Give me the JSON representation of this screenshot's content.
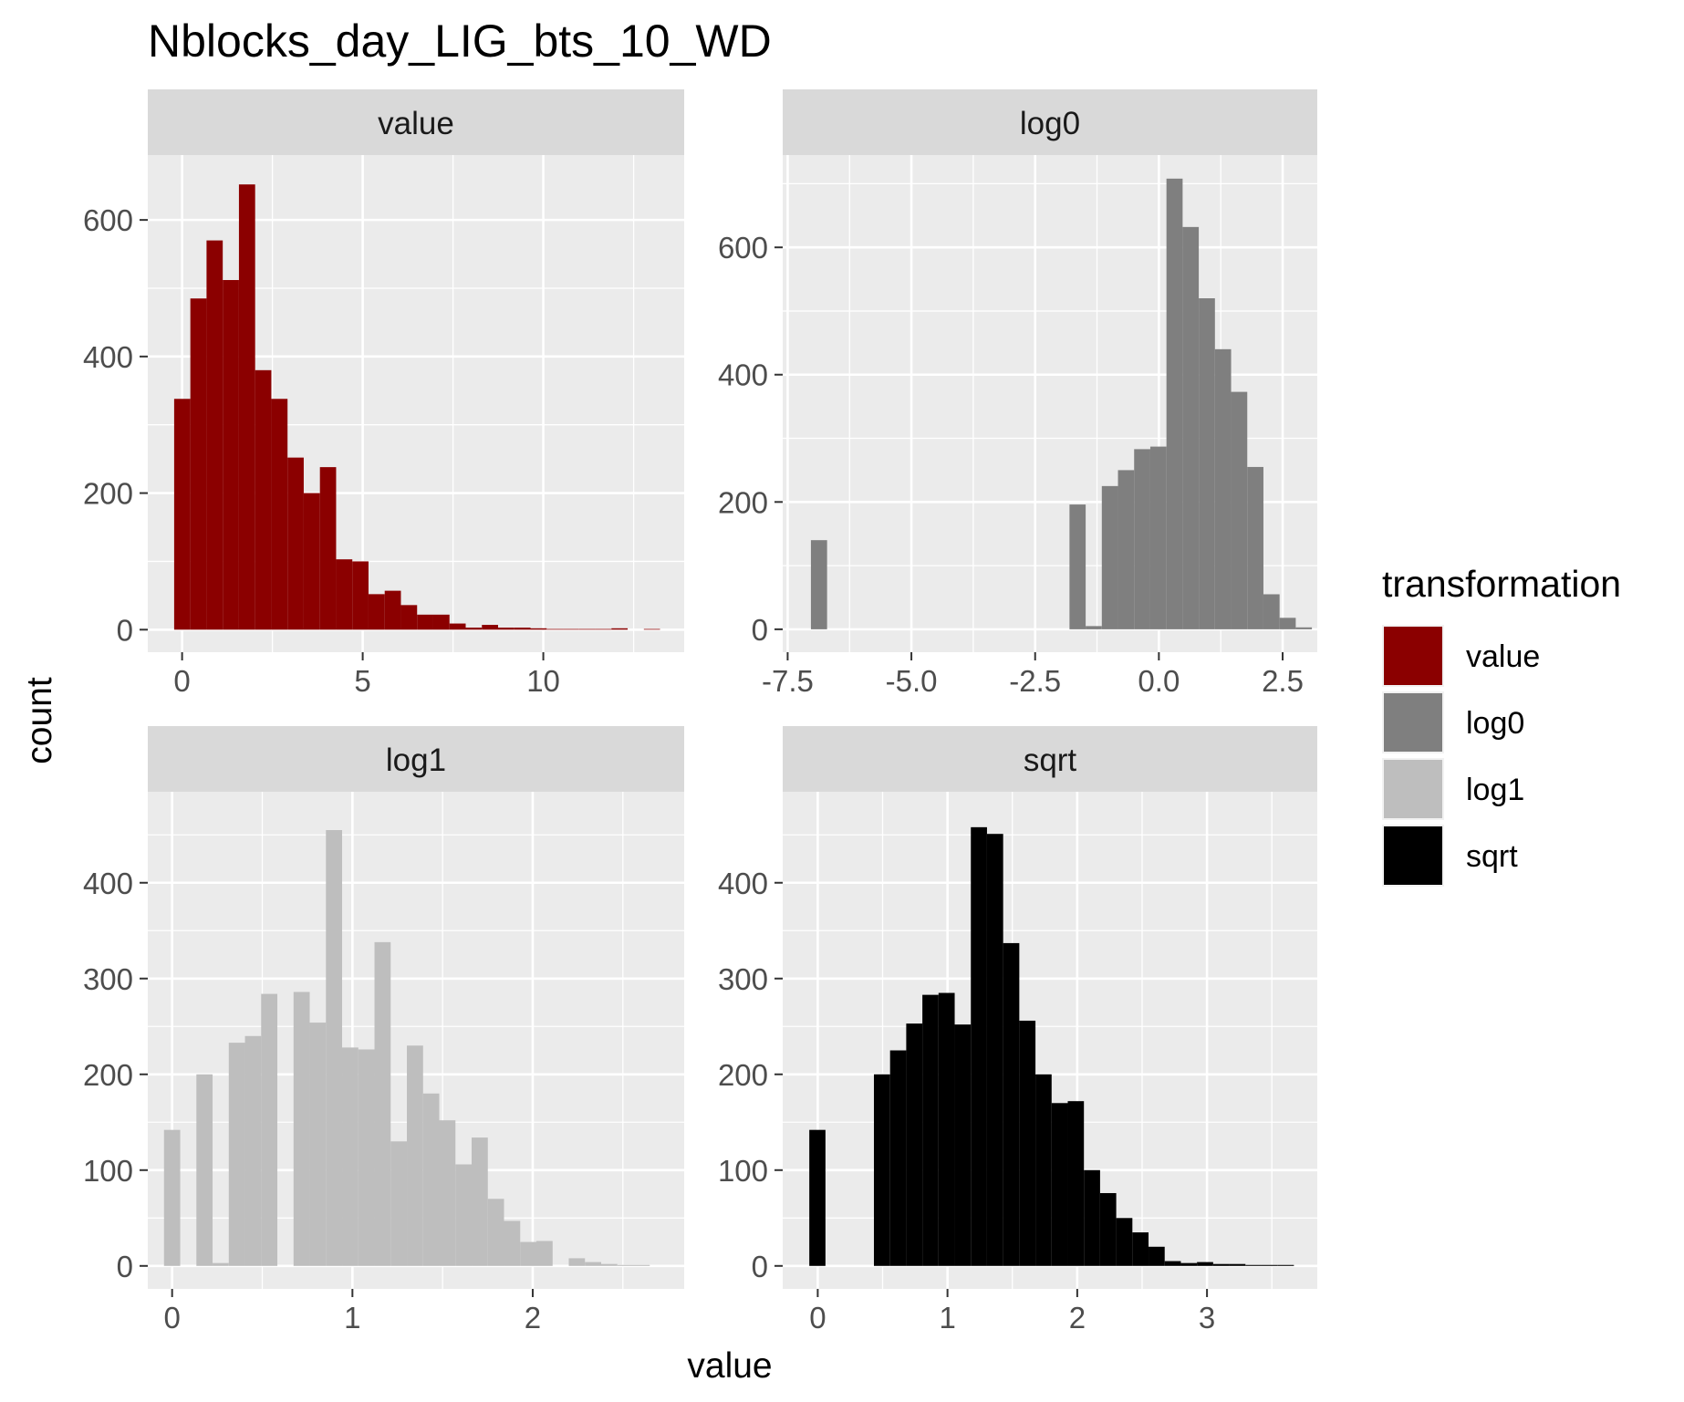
{
  "chart_data": {
    "type": "bar",
    "title": "Nblocks_day_LIG_bts_10_WD",
    "xlabel": "value",
    "ylabel": "count",
    "legend": {
      "title": "transformation",
      "position": "right",
      "entries": [
        {
          "label": "value",
          "color": "#8B0000"
        },
        {
          "label": "log0",
          "color": "#7F7F7F"
        },
        {
          "label": "log1",
          "color": "#BEBEBE"
        },
        {
          "label": "sqrt",
          "color": "#000000"
        }
      ]
    },
    "panel_background": "#EBEBEB",
    "strip_background": "#D9D9D9",
    "panels": [
      {
        "strip": "value",
        "color": "#8B0000",
        "xlim": [
          -0.95,
          13.9
        ],
        "ylim": [
          -33,
          695
        ],
        "xticks": [
          0,
          5,
          10
        ],
        "xtick_labels": [
          "0",
          "5",
          "10"
        ],
        "yticks": [
          0,
          200,
          400,
          600
        ],
        "ytick_labels": [
          "0",
          "200",
          "400",
          "600"
        ],
        "bin_start": -0.22,
        "bin_width": 0.4484,
        "counts": [
          338,
          485,
          570,
          512,
          652,
          380,
          338,
          252,
          200,
          238,
          103,
          100,
          52,
          57,
          36,
          22,
          22,
          9,
          3,
          7,
          3,
          3,
          2,
          1,
          1,
          1,
          1,
          2,
          0,
          1
        ]
      },
      {
        "strip": "log0",
        "color": "#7F7F7F",
        "xlim": [
          -7.6,
          3.2
        ],
        "ylim": [
          -36,
          745
        ],
        "xticks": [
          -7.5,
          -5.0,
          -2.5,
          0.0,
          2.5
        ],
        "xtick_labels": [
          "-7.5",
          "-5.0",
          "-2.5",
          "0.0",
          "2.5"
        ],
        "yticks": [
          0,
          200,
          400,
          600
        ],
        "ytick_labels": [
          "0",
          "200",
          "400",
          "600"
        ],
        "bin_start": -7.03,
        "bin_width": 0.3265,
        "counts": [
          140,
          0,
          0,
          0,
          0,
          0,
          0,
          0,
          0,
          0,
          0,
          0,
          0,
          0,
          0,
          0,
          196,
          5,
          225,
          250,
          283,
          287,
          708,
          632,
          520,
          440,
          373,
          255,
          55,
          18,
          3
        ]
      },
      {
        "strip": "log1",
        "color": "#BEBEBE",
        "xlim": [
          -0.135,
          2.84
        ],
        "ylim": [
          -24,
          495
        ],
        "xticks": [
          0,
          1,
          2
        ],
        "xtick_labels": [
          "0",
          "1",
          "2"
        ],
        "yticks": [
          0,
          100,
          200,
          300,
          400
        ],
        "ytick_labels": [
          "0",
          "100",
          "200",
          "300",
          "400"
        ],
        "bin_start": -0.045,
        "bin_width": 0.0898,
        "counts": [
          142,
          0,
          200,
          3,
          233,
          240,
          284,
          0,
          286,
          254,
          455,
          228,
          226,
          338,
          130,
          230,
          180,
          152,
          106,
          134,
          70,
          47,
          25,
          26,
          0,
          8,
          4,
          2,
          1,
          1
        ]
      },
      {
        "strip": "sqrt",
        "color": "#000000",
        "xlim": [
          -0.27,
          3.85
        ],
        "ylim": [
          -24,
          495
        ],
        "xticks": [
          0,
          1,
          2,
          3
        ],
        "xtick_labels": [
          "0",
          "1",
          "2",
          "3"
        ],
        "yticks": [
          0,
          100,
          200,
          300,
          400
        ],
        "ytick_labels": [
          "0",
          "100",
          "200",
          "300",
          "400"
        ],
        "bin_start": -0.065,
        "bin_width": 0.1245,
        "counts": [
          142,
          0,
          0,
          0,
          200,
          225,
          253,
          283,
          285,
          252,
          458,
          451,
          337,
          256,
          200,
          170,
          172,
          100,
          76,
          50,
          35,
          20,
          5,
          3,
          4,
          2,
          2,
          1,
          1,
          1
        ]
      }
    ]
  }
}
